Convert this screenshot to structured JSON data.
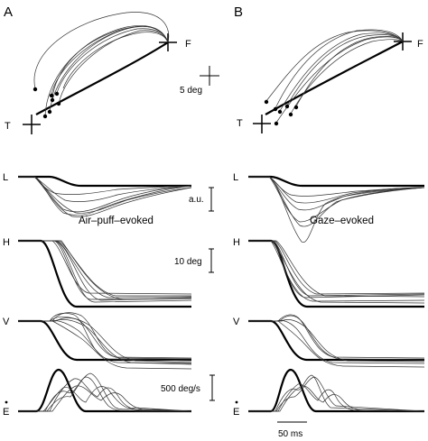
{
  "panels": {
    "a": {
      "letter": "A",
      "condition": "Air–puff–evoked"
    },
    "b": {
      "letter": "B",
      "condition": "Gaze–evoked"
    }
  },
  "targets": {
    "t": "T",
    "f": "F"
  },
  "traces": {
    "l": "L",
    "h": "H",
    "v": "V",
    "e": "E"
  },
  "scale_bars": {
    "spatial": "5 deg",
    "lid": "a.u.",
    "position": "10 deg",
    "velocity": "500 deg/s",
    "time": "50 ms"
  }
}
